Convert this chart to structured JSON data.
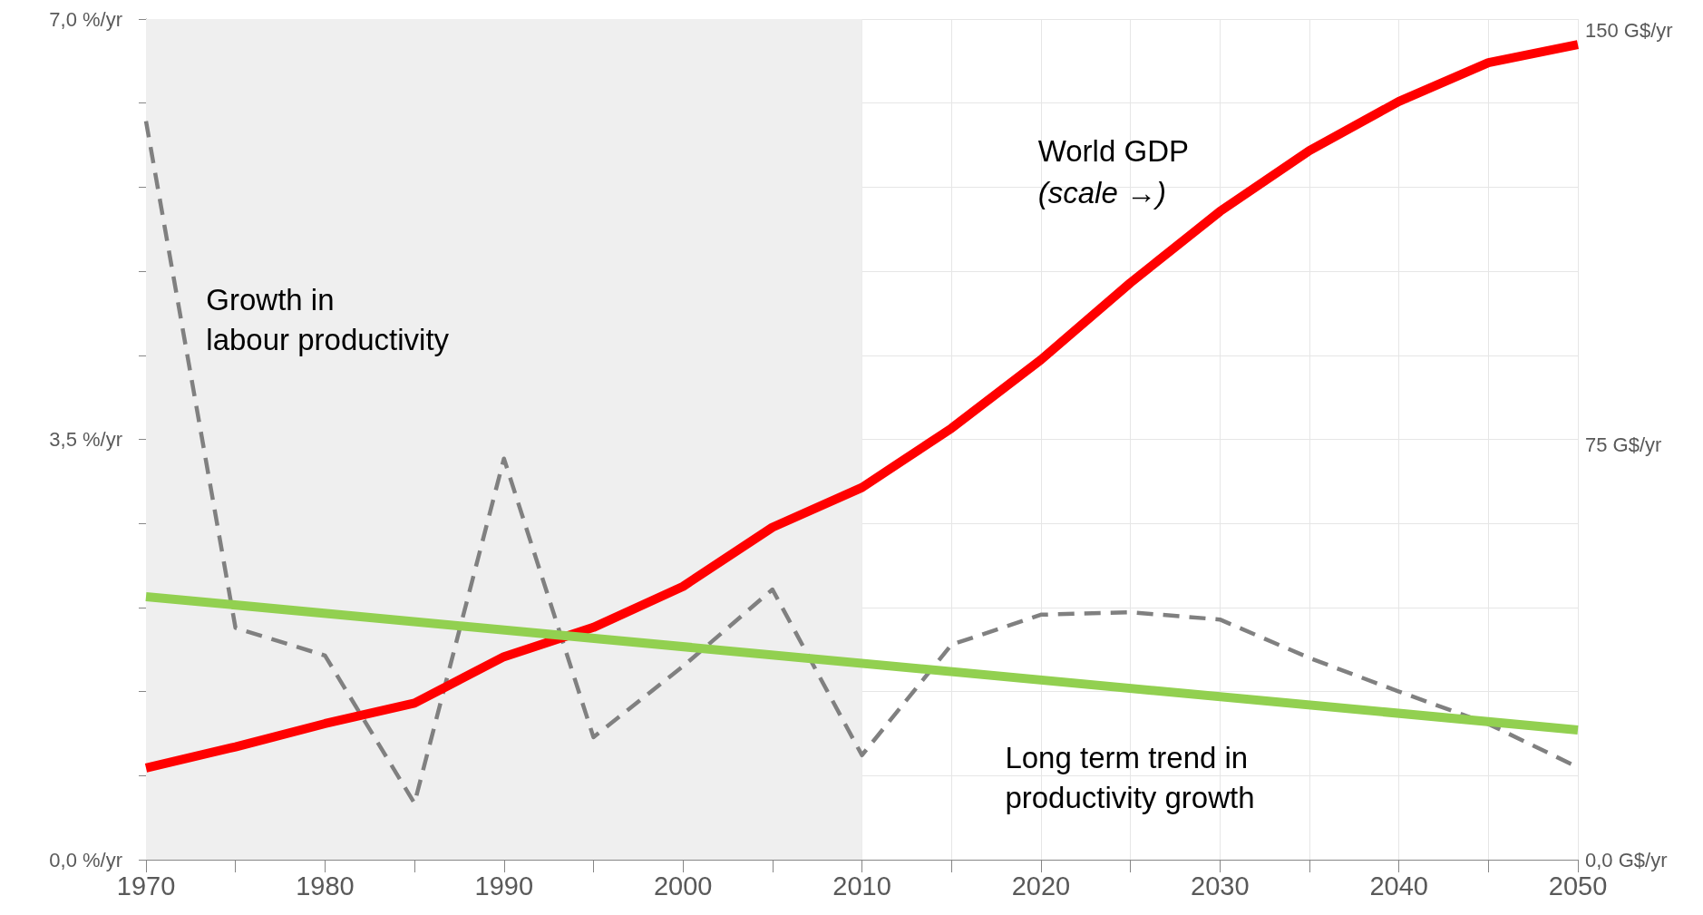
{
  "chart_data": {
    "type": "line",
    "x": [
      1970,
      1975,
      1980,
      1985,
      1990,
      1995,
      2000,
      2005,
      2010,
      2015,
      2020,
      2025,
      2030,
      2035,
      2040,
      2045,
      2050
    ],
    "series": [
      {
        "name": "Growth in labour productivity",
        "color": "#808080",
        "line_style": "dashed",
        "values": [
          6.15,
          1.93,
          1.7,
          0.47,
          3.34,
          1.02,
          1.61,
          2.25,
          0.87,
          1.79,
          2.04,
          2.06,
          2.0,
          1.68,
          1.4,
          1.13,
          0.77
        ]
      },
      {
        "name": "World GDP",
        "color": "#ff0000",
        "axis": "y2",
        "values": [
          16.6,
          20.4,
          24.6,
          28.3,
          36.7,
          42.0,
          49.4,
          60.1,
          67.3,
          78.0,
          90.4,
          104.3,
          117.2,
          128.2,
          137.1,
          144.1,
          147.4
        ]
      },
      {
        "name": "Long term trend in productivity growth",
        "color": "#92d050",
        "x": [
          1970,
          2050
        ],
        "values": [
          2.19,
          1.08
        ]
      }
    ],
    "annotations": [
      "(scale →)"
    ],
    "bands": [
      {
        "axis": "x",
        "from": 1970,
        "to": 2010,
        "color": "#efefef"
      }
    ],
    "xlim": [
      1970,
      2050
    ],
    "xticks": [
      1970,
      {
        "value": 1975,
        "label": null
      },
      1980,
      {
        "value": 1985,
        "label": null
      },
      1990,
      {
        "value": 1995,
        "label": null
      },
      2000,
      {
        "value": 2005,
        "label": null
      },
      2010,
      {
        "value": 2015,
        "label": null
      },
      2020,
      {
        "value": 2025,
        "label": null
      },
      2030,
      {
        "value": 2035,
        "label": null
      },
      2040,
      {
        "value": 2045,
        "label": null
      },
      2050
    ],
    "ylim": [
      0,
      7
    ],
    "yticks": [
      {
        "value": 0,
        "label": "0,0 %/yr"
      },
      {
        "value": 0.7,
        "label": null
      },
      {
        "value": 1.4,
        "label": null
      },
      {
        "value": 2.1,
        "label": null
      },
      {
        "value": 2.8,
        "label": null
      },
      {
        "value": 3.5,
        "label": "3,5 %/yr"
      },
      {
        "value": 4.2,
        "label": null
      },
      {
        "value": 4.9,
        "label": null
      },
      {
        "value": 5.6,
        "label": null
      },
      {
        "value": 6.3,
        "label": null
      },
      {
        "value": 7,
        "label": "7,0 %/yr"
      }
    ],
    "y2lim": [
      0,
      152
    ],
    "y2ticks": [
      {
        "value": 0,
        "label": "0,0 G$/yr"
      },
      {
        "value": 75,
        "label": "75 G$/yr"
      },
      {
        "value": 150,
        "label": "150 G$/yr"
      }
    ],
    "grid": true,
    "legend": false,
    "marker": "none",
    "line_style": "solid"
  }
}
